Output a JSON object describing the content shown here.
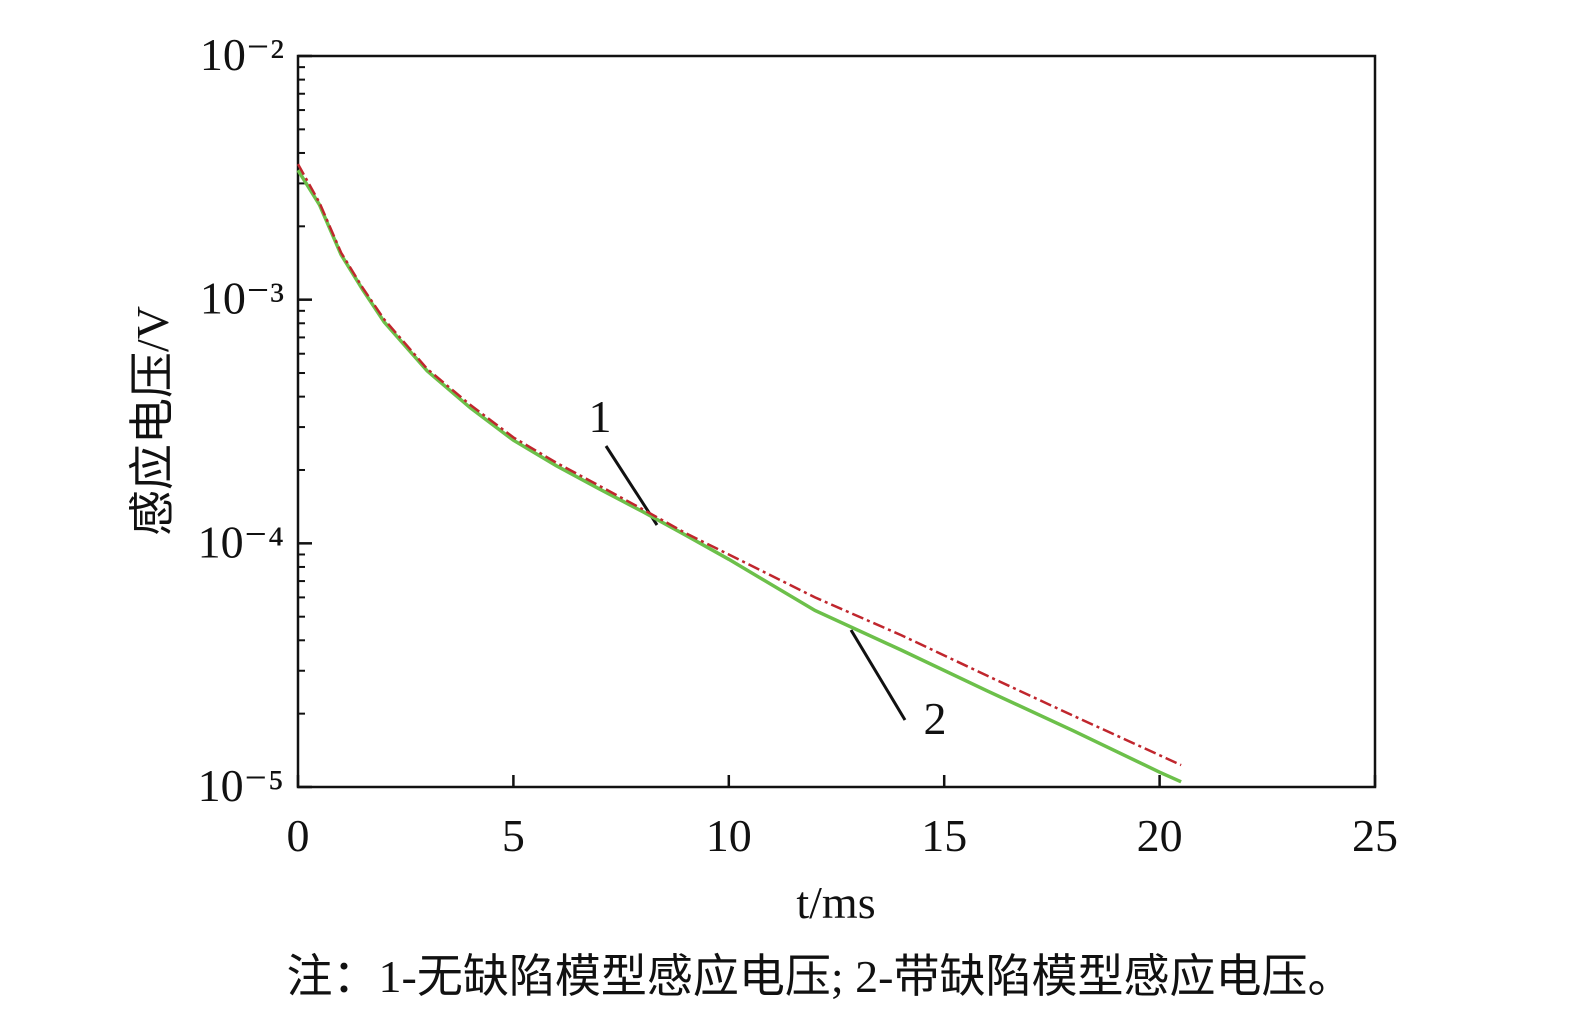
{
  "chart_data": {
    "type": "line",
    "xlabel": "t/ms",
    "ylabel": "感应电压/V",
    "note": "注：1-无缺陷模型感应电压; 2-带缺陷模型感应电压。",
    "log_y": true,
    "grid": false,
    "xlim": [
      0,
      25
    ],
    "xticks": [
      0,
      5,
      10,
      15,
      20,
      25
    ],
    "ylim": [
      1e-05,
      0.01
    ],
    "yticks": [
      {
        "value": 1e-05,
        "label": "10⁻⁵"
      },
      {
        "value": 0.0001,
        "label": "10⁻⁴"
      },
      {
        "value": 0.001,
        "label": "10⁻³"
      },
      {
        "value": 0.01,
        "label": "10⁻²"
      }
    ],
    "x": [
      0,
      0.5,
      1,
      1.5,
      2,
      3,
      4,
      5,
      6,
      7,
      8,
      9,
      10,
      12,
      14,
      16,
      18,
      20,
      20.5
    ],
    "series": [
      {
        "name": "1",
        "color": "#c0262d",
        "dash": true,
        "values": [
          0.0036,
          0.0025,
          0.00156,
          0.00112,
          0.00083,
          0.00052,
          0.00037,
          0.000272,
          0.000214,
          0.000172,
          0.000138,
          0.00011,
          9e-05,
          6e-05,
          4.2e-05,
          2.86e-05,
          1.96e-05,
          1.35e-05,
          1.23e-05
        ]
      },
      {
        "name": "2",
        "color": "#6cc04a",
        "dash": false,
        "values": [
          0.0034,
          0.00245,
          0.00153,
          0.0011,
          0.00081,
          0.00051,
          0.00036,
          0.000265,
          0.000208,
          0.000167,
          0.000135,
          0.000108,
          8.6e-05,
          5.3e-05,
          3.65e-05,
          2.48e-05,
          1.7e-05,
          1.15e-05,
          1.05e-05
        ]
      }
    ]
  }
}
